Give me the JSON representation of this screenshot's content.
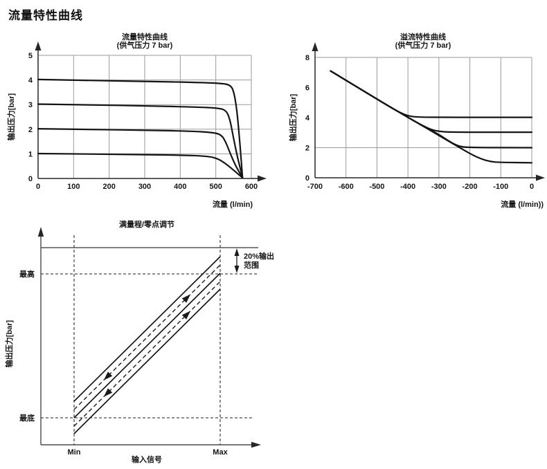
{
  "page": {
    "title": "流量特性曲线"
  },
  "colors": {
    "ink": "#141414",
    "grid": "#9a9a9a",
    "dashed": "#4a4a4a",
    "background": "#ffffff"
  },
  "chart_data": [
    {
      "id": "flow",
      "type": "line",
      "title": "流量特性曲线",
      "subtitle": "(供气压力 7 bar)",
      "xlabel": "流量 (l/min)",
      "ylabel": "输出压力[bar]",
      "xlim": [
        0,
        600
      ],
      "ylim": [
        0,
        5
      ],
      "x_ticks": [
        0,
        100,
        200,
        300,
        400,
        500,
        600
      ],
      "y_ticks": [
        0,
        1,
        2,
        3,
        4,
        5
      ],
      "grid_x": [
        100,
        200,
        300,
        400,
        500,
        600
      ],
      "grid_y": [
        1,
        2,
        3,
        4,
        5
      ],
      "legend": "none",
      "series": [
        {
          "name": "4 bar",
          "points": [
            [
              0,
              4.02
            ],
            [
              150,
              3.98
            ],
            [
              300,
              3.94
            ],
            [
              450,
              3.9
            ],
            [
              520,
              3.86
            ],
            [
              543,
              3.78
            ],
            [
              552,
              3.45
            ],
            [
              560,
              2.7
            ],
            [
              568,
              1.4
            ],
            [
              575,
              0.05
            ]
          ]
        },
        {
          "name": "3 bar",
          "points": [
            [
              0,
              3.02
            ],
            [
              150,
              2.99
            ],
            [
              300,
              2.95
            ],
            [
              450,
              2.9
            ],
            [
              505,
              2.86
            ],
            [
              528,
              2.78
            ],
            [
              539,
              2.45
            ],
            [
              549,
              1.7
            ],
            [
              561,
              0.85
            ],
            [
              575,
              0.05
            ]
          ]
        },
        {
          "name": "2 bar",
          "points": [
            [
              0,
              2.02
            ],
            [
              150,
              1.99
            ],
            [
              300,
              1.96
            ],
            [
              430,
              1.92
            ],
            [
              490,
              1.87
            ],
            [
              516,
              1.78
            ],
            [
              529,
              1.45
            ],
            [
              541,
              1.0
            ],
            [
              556,
              0.5
            ],
            [
              575,
              0.04
            ]
          ]
        },
        {
          "name": "1 bar",
          "points": [
            [
              0,
              1.01
            ],
            [
              150,
              0.99
            ],
            [
              300,
              0.97
            ],
            [
              420,
              0.94
            ],
            [
              480,
              0.9
            ],
            [
              506,
              0.8
            ],
            [
              526,
              0.62
            ],
            [
              545,
              0.4
            ],
            [
              561,
              0.2
            ],
            [
              575,
              0.03
            ]
          ]
        }
      ]
    },
    {
      "id": "relief",
      "type": "line",
      "title": "溢流特性曲线",
      "subtitle": "(供气压力 7 bar)",
      "xlabel": "流量 (l/min))",
      "ylabel": "输出压力[bar]",
      "xlim": [
        -700,
        0
      ],
      "ylim": [
        0,
        8
      ],
      "x_ticks": [
        -700,
        -600,
        -500,
        -400,
        -300,
        -200,
        -100,
        0
      ],
      "y_ticks": [
        0,
        2,
        4,
        6,
        8
      ],
      "grid_x": [
        -600,
        -500,
        -400,
        -300,
        -200,
        -100,
        0
      ],
      "grid_y": [
        2,
        8
      ],
      "legend": "none",
      "series": [
        {
          "name": "4 bar",
          "points": [
            [
              -650,
              7.1
            ],
            [
              -550,
              5.85
            ],
            [
              -480,
              4.98
            ],
            [
              -445,
              4.55
            ],
            [
              -420,
              4.28
            ],
            [
              -400,
              4.12
            ],
            [
              -375,
              4.04
            ],
            [
              -330,
              4.02
            ],
            [
              0,
              4.02
            ]
          ]
        },
        {
          "name": "3 bar",
          "points": [
            [
              -650,
              7.1
            ],
            [
              -480,
              4.98
            ],
            [
              -430,
              4.38
            ],
            [
              -385,
              3.83
            ],
            [
              -350,
              3.45
            ],
            [
              -325,
              3.2
            ],
            [
              -300,
              3.08
            ],
            [
              -260,
              3.03
            ],
            [
              0,
              3.03
            ]
          ]
        },
        {
          "name": "2 bar",
          "points": [
            [
              -650,
              7.1
            ],
            [
              -480,
              4.98
            ],
            [
              -430,
              4.38
            ],
            [
              -350,
              3.42
            ],
            [
              -300,
              2.88
            ],
            [
              -272,
              2.5
            ],
            [
              -252,
              2.25
            ],
            [
              -232,
              2.08
            ],
            [
              -205,
              2.01
            ],
            [
              0,
              2.0
            ]
          ]
        },
        {
          "name": "1 bar",
          "points": [
            [
              -650,
              7.1
            ],
            [
              -480,
              4.98
            ],
            [
              -430,
              4.38
            ],
            [
              -340,
              3.3
            ],
            [
              -285,
              2.63
            ],
            [
              -235,
              2.03
            ],
            [
              -195,
              1.55
            ],
            [
              -163,
              1.25
            ],
            [
              -135,
              1.08
            ],
            [
              -105,
              1.02
            ],
            [
              0,
              1.0
            ]
          ]
        }
      ]
    },
    {
      "id": "adjust",
      "type": "line",
      "title": "满量程/零点调节",
      "xlabel": "输入信号",
      "ylabel": "输出压力[bar]",
      "x_tick_labels": [
        "Min",
        "Max"
      ],
      "y_mark_high": "最高",
      "y_mark_low": "最底",
      "annotation": "20%输出范围",
      "annotation_lines": [
        "20%输出",
        "范围"
      ],
      "solid_diagonal_lines": 3,
      "dashed_shift_lines": 2
    }
  ]
}
